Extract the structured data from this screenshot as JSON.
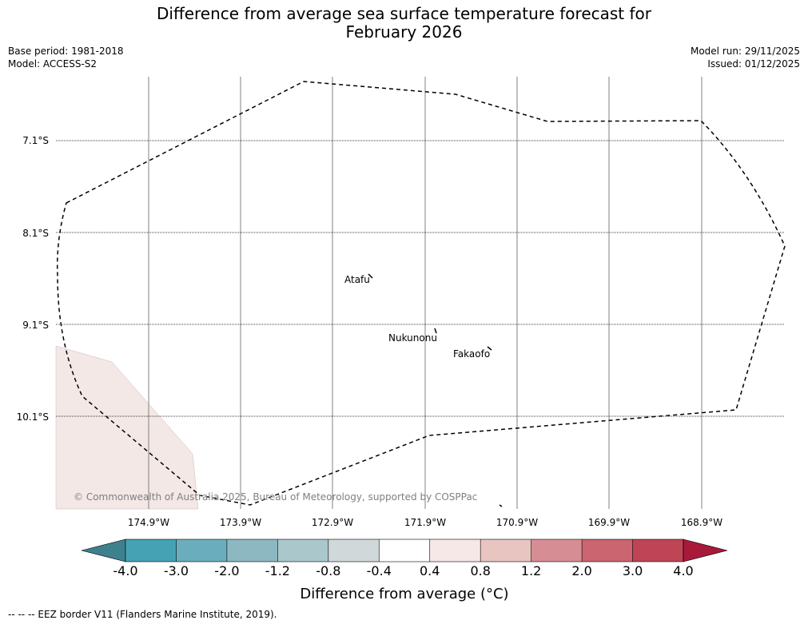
{
  "title_line1": "Difference from average sea surface temperature forecast for",
  "title_line2": "February 2026",
  "base_period": "Base period: 1981-2018",
  "model": "Model: ACCESS-S2",
  "model_run": "Model run: 29/11/2025",
  "issued": "Issued: 01/12/2025",
  "map": {
    "lat_labels": [
      "7.1°S",
      "8.1°S",
      "9.1°S",
      "10.1°S"
    ],
    "lon_labels": [
      "174.9°W",
      "173.9°W",
      "172.9°W",
      "171.9°W",
      "170.9°W",
      "169.9°W",
      "168.9°W"
    ],
    "places": [
      {
        "name": "Atafu"
      },
      {
        "name": "Nukunonu"
      },
      {
        "name": "Fakaofo"
      }
    ],
    "copyright": "© Commonwealth of Australia 2025, Bureau of Meteorology, supported by COSPPac",
    "land_color": "#f3e8e6",
    "eez_color": "#000000"
  },
  "colorbar": {
    "title": "Difference from average (°C)",
    "tick_labels": [
      "-4.0",
      "-3.0",
      "-2.0",
      "-1.2",
      "-0.8",
      "-0.4",
      "0.4",
      "0.8",
      "1.2",
      "2.0",
      "3.0",
      "4.0"
    ],
    "under_color": "#3e818e",
    "over_color": "#a8193a",
    "segment_colors": [
      "#44a2b4",
      "#6aaebd",
      "#8db8c2",
      "#aac8cc",
      "#d1d8da",
      "#ffffff",
      "#f5e8e6",
      "#e9c5c2",
      "#d68e94",
      "#cb6570",
      "#bf4456"
    ]
  },
  "footnote": "--  --  -- EEZ border V11 (Flanders Marine Institute, 2019)."
}
